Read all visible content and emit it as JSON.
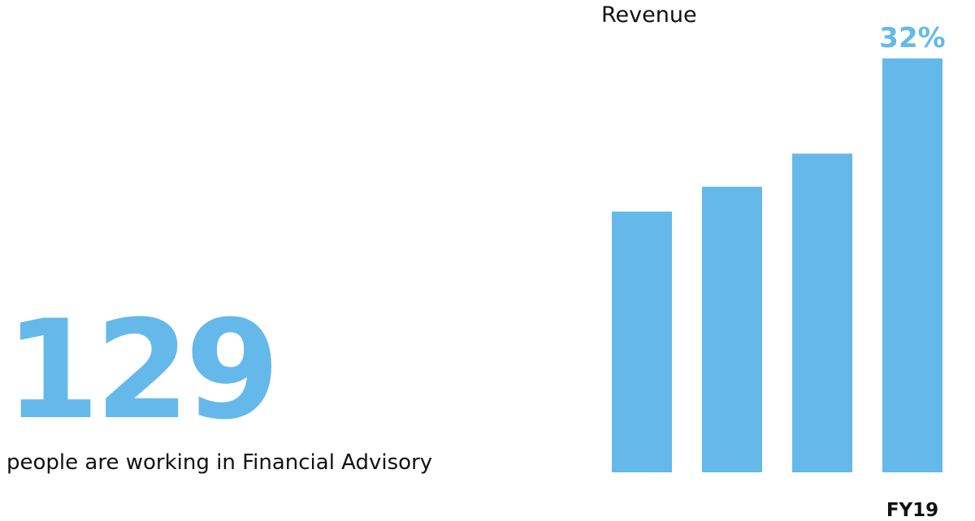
{
  "stat": {
    "number": "129",
    "caption": "people are working in Financial Advisory"
  },
  "colors": {
    "accent": "#64B9EA",
    "text": "#111111"
  },
  "chart_data": {
    "type": "bar",
    "title": "Revenue",
    "categories": [
      "",
      "",
      "",
      "FY19"
    ],
    "values": [
      63,
      69,
      77,
      100
    ],
    "data_labels": [
      "",
      "",
      "",
      "32%"
    ],
    "ylim": [
      0,
      100
    ],
    "grid": false,
    "legend": "none"
  }
}
